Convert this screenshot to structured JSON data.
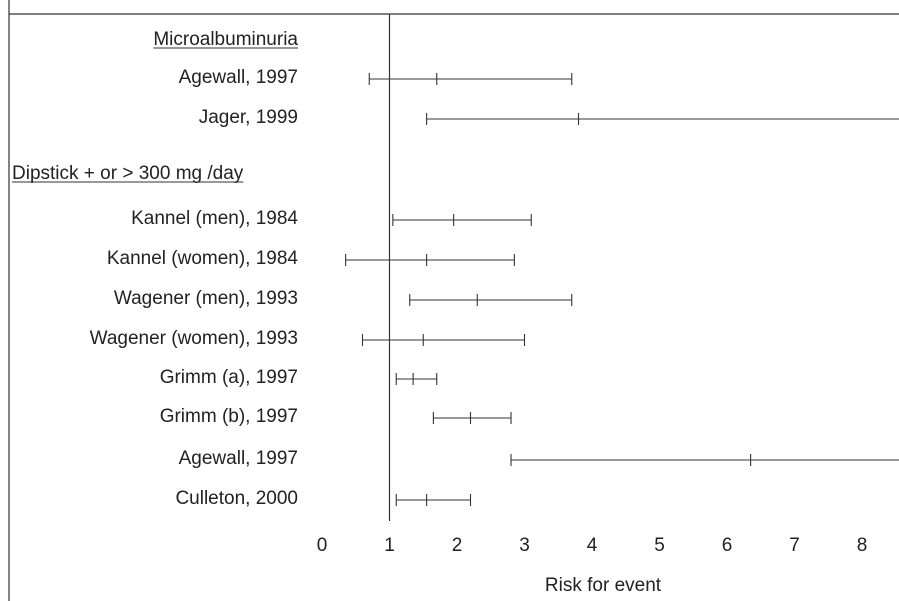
{
  "chart_data": {
    "type": "forest",
    "xlabel": "Risk for event",
    "xlim": [
      0,
      8.6
    ],
    "xticks": [
      0,
      1,
      2,
      3,
      4,
      5,
      6,
      7,
      8
    ],
    "reference_line": 1,
    "sections": [
      {
        "heading": "Microalbuminuria",
        "studies": [
          {
            "label": "Agewall, 1997",
            "low": 0.7,
            "point": 1.7,
            "high": 3.7
          },
          {
            "label": "Jager, 1999",
            "low": 1.55,
            "point": 3.8,
            "high": 8.6
          }
        ]
      },
      {
        "heading": "Dipstick + or > 300 mg /day",
        "studies": [
          {
            "label": "Kannel (men), 1984",
            "low": 1.05,
            "point": 1.95,
            "high": 3.1
          },
          {
            "label": "Kannel (women), 1984",
            "low": 0.35,
            "point": 1.55,
            "high": 2.85
          },
          {
            "label": "Wagener (men), 1993",
            "low": 1.3,
            "point": 2.3,
            "high": 3.7
          },
          {
            "label": "Wagener (women), 1993",
            "low": 0.6,
            "point": 1.5,
            "high": 3.0
          },
          {
            "label": "Grimm (a), 1997",
            "low": 1.1,
            "point": 1.35,
            "high": 1.7
          },
          {
            "label": "Grimm (b), 1997",
            "low": 1.65,
            "point": 2.2,
            "high": 2.8
          },
          {
            "label": "Agewall, 1997",
            "low": 2.8,
            "point": 6.35,
            "high": 8.6
          },
          {
            "label": "Culleton, 2000",
            "low": 1.1,
            "point": 1.55,
            "high": 2.2
          }
        ]
      }
    ]
  }
}
